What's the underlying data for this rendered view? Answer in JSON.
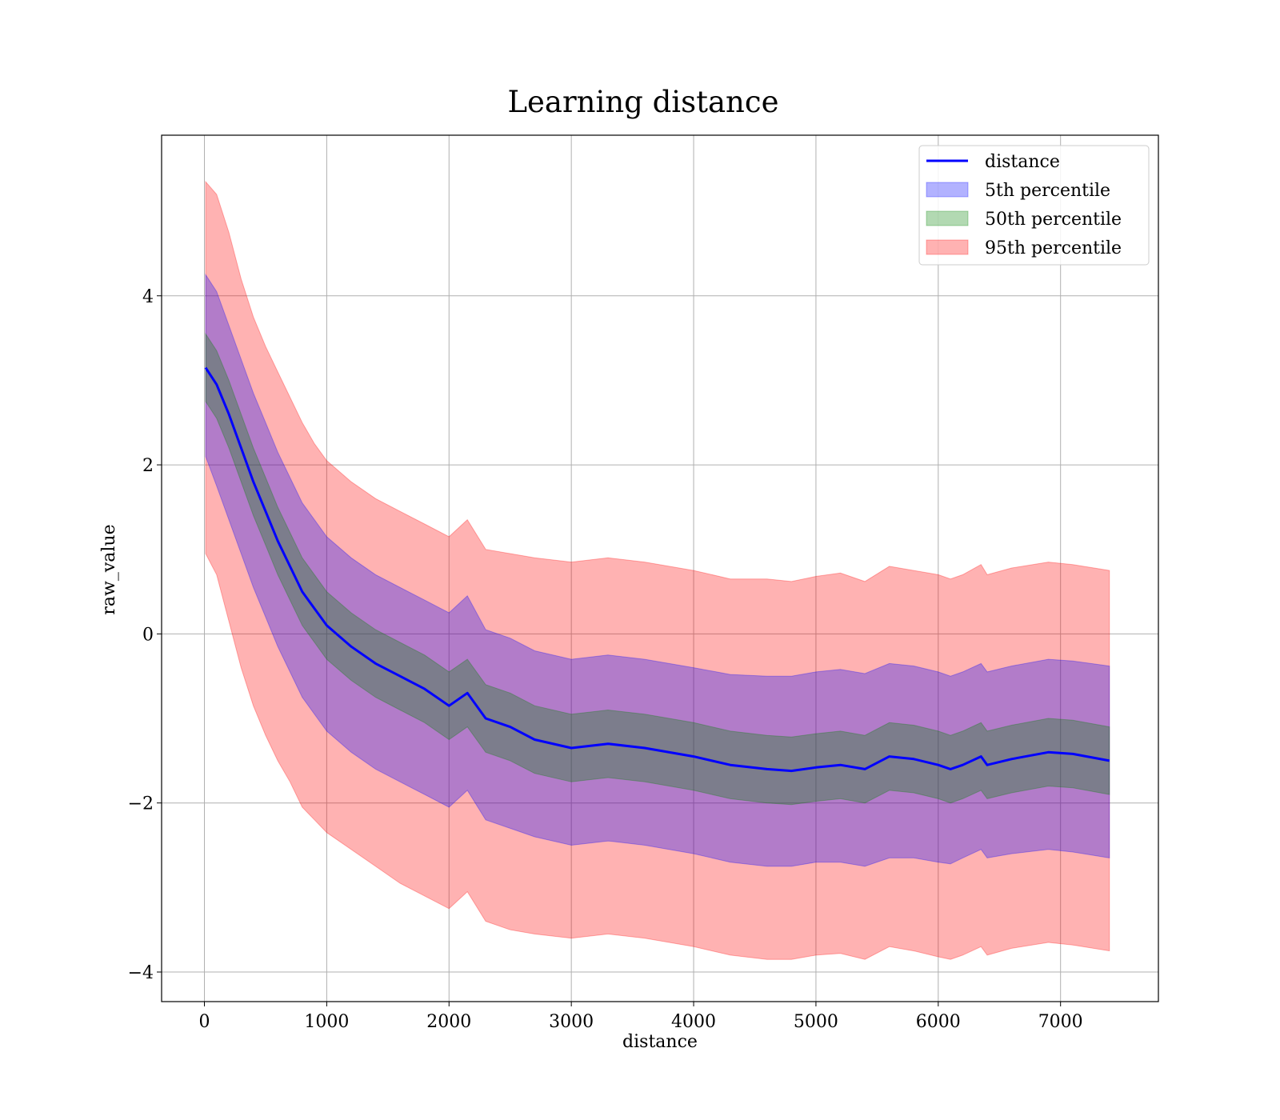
{
  "chart_data": {
    "type": "line",
    "title": "Learning distance",
    "xlabel": "distance",
    "ylabel": "raw_value",
    "xlim": [
      -350,
      7800
    ],
    "ylim": [
      -4.35,
      5.9
    ],
    "x_ticks": [
      0,
      1000,
      2000,
      3000,
      4000,
      5000,
      6000,
      7000
    ],
    "y_ticks": [
      -4,
      -2,
      0,
      2,
      4
    ],
    "x_tick_labels": [
      "0",
      "1000",
      "2000",
      "3000",
      "4000",
      "5000",
      "6000",
      "7000"
    ],
    "y_tick_labels": [
      "−4",
      "−2",
      "0",
      "2",
      "4"
    ],
    "grid": true,
    "legend_position": "top-right",
    "x": [
      10,
      100,
      200,
      300,
      400,
      500,
      600,
      700,
      800,
      900,
      1000,
      1200,
      1400,
      1600,
      1800,
      2000,
      2150,
      2300,
      2500,
      2700,
      3000,
      3300,
      3600,
      4000,
      4300,
      4600,
      4800,
      5000,
      5200,
      5400,
      5600,
      5800,
      6000,
      6100,
      6200,
      6350,
      6400,
      6600,
      6900,
      7100,
      7400
    ],
    "series": [
      {
        "name": "distance",
        "kind": "line",
        "color": "#0000ff",
        "values": [
          3.15,
          2.95,
          2.6,
          2.2,
          1.8,
          1.45,
          1.1,
          0.8,
          0.5,
          0.3,
          0.1,
          -0.15,
          -0.35,
          -0.5,
          -0.65,
          -0.85,
          -0.7,
          -1.0,
          -1.1,
          -1.25,
          -1.35,
          -1.3,
          -1.35,
          -1.45,
          -1.55,
          -1.6,
          -1.62,
          -1.58,
          -1.55,
          -1.6,
          -1.45,
          -1.48,
          -1.55,
          -1.6,
          -1.55,
          -1.45,
          -1.55,
          -1.48,
          -1.4,
          -1.42,
          -1.5
        ]
      },
      {
        "name": "5th percentile",
        "kind": "band",
        "color": "#0000ff",
        "lower": [
          2.1,
          1.75,
          1.35,
          0.95,
          0.55,
          0.2,
          -0.15,
          -0.45,
          -0.75,
          -0.95,
          -1.15,
          -1.4,
          -1.6,
          -1.75,
          -1.9,
          -2.05,
          -1.85,
          -2.2,
          -2.3,
          -2.4,
          -2.5,
          -2.45,
          -2.5,
          -2.6,
          -2.7,
          -2.75,
          -2.75,
          -2.7,
          -2.7,
          -2.75,
          -2.65,
          -2.65,
          -2.7,
          -2.72,
          -2.65,
          -2.55,
          -2.65,
          -2.6,
          -2.55,
          -2.58,
          -2.65
        ],
        "upper": [
          4.25,
          4.05,
          3.65,
          3.25,
          2.85,
          2.5,
          2.15,
          1.85,
          1.55,
          1.35,
          1.15,
          0.9,
          0.7,
          0.55,
          0.4,
          0.25,
          0.45,
          0.05,
          -0.05,
          -0.2,
          -0.3,
          -0.25,
          -0.3,
          -0.4,
          -0.48,
          -0.5,
          -0.5,
          -0.45,
          -0.42,
          -0.47,
          -0.35,
          -0.38,
          -0.45,
          -0.5,
          -0.45,
          -0.35,
          -0.45,
          -0.38,
          -0.3,
          -0.32,
          -0.38
        ]
      },
      {
        "name": "50th percentile",
        "kind": "band",
        "color": "#008000",
        "lower": [
          2.75,
          2.55,
          2.2,
          1.8,
          1.4,
          1.05,
          0.7,
          0.4,
          0.1,
          -0.1,
          -0.3,
          -0.55,
          -0.75,
          -0.9,
          -1.05,
          -1.25,
          -1.1,
          -1.4,
          -1.5,
          -1.65,
          -1.75,
          -1.7,
          -1.75,
          -1.85,
          -1.95,
          -2.0,
          -2.02,
          -1.98,
          -1.95,
          -2.0,
          -1.85,
          -1.88,
          -1.95,
          -2.0,
          -1.95,
          -1.85,
          -1.95,
          -1.88,
          -1.8,
          -1.82,
          -1.9
        ],
        "upper": [
          3.55,
          3.35,
          3.0,
          2.6,
          2.2,
          1.85,
          1.5,
          1.2,
          0.9,
          0.7,
          0.5,
          0.25,
          0.05,
          -0.1,
          -0.25,
          -0.45,
          -0.3,
          -0.6,
          -0.7,
          -0.85,
          -0.95,
          -0.9,
          -0.95,
          -1.05,
          -1.15,
          -1.2,
          -1.22,
          -1.18,
          -1.15,
          -1.2,
          -1.05,
          -1.08,
          -1.15,
          -1.2,
          -1.15,
          -1.05,
          -1.15,
          -1.08,
          -1.0,
          -1.02,
          -1.1
        ]
      },
      {
        "name": "95th percentile",
        "kind": "band",
        "color": "#ff0000",
        "lower": [
          0.95,
          0.7,
          0.15,
          -0.4,
          -0.85,
          -1.2,
          -1.5,
          -1.75,
          -2.05,
          -2.2,
          -2.35,
          -2.55,
          -2.75,
          -2.95,
          -3.1,
          -3.25,
          -3.05,
          -3.4,
          -3.5,
          -3.55,
          -3.6,
          -3.55,
          -3.6,
          -3.7,
          -3.8,
          -3.85,
          -3.85,
          -3.8,
          -3.78,
          -3.85,
          -3.7,
          -3.75,
          -3.82,
          -3.85,
          -3.8,
          -3.7,
          -3.8,
          -3.72,
          -3.65,
          -3.68,
          -3.75
        ],
        "upper": [
          5.35,
          5.2,
          4.75,
          4.2,
          3.75,
          3.4,
          3.1,
          2.8,
          2.5,
          2.25,
          2.05,
          1.8,
          1.6,
          1.45,
          1.3,
          1.15,
          1.35,
          1.0,
          0.95,
          0.9,
          0.85,
          0.9,
          0.85,
          0.75,
          0.65,
          0.65,
          0.62,
          0.68,
          0.72,
          0.62,
          0.8,
          0.75,
          0.7,
          0.65,
          0.7,
          0.82,
          0.7,
          0.78,
          0.85,
          0.82,
          0.75
        ]
      }
    ]
  }
}
